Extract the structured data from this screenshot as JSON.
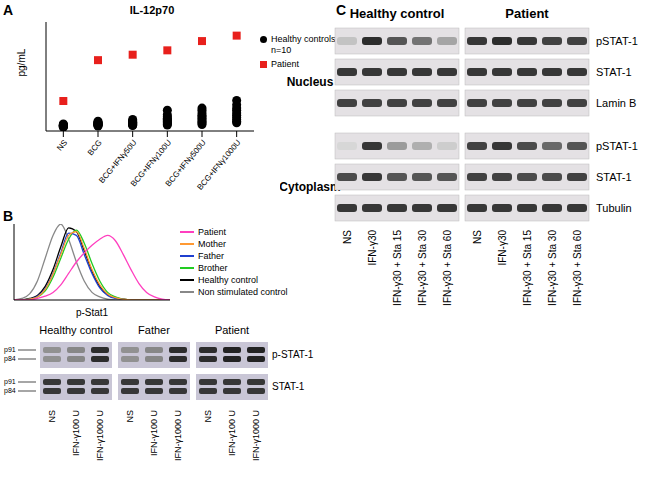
{
  "panel_labels": [
    "A",
    "B",
    "C"
  ],
  "chart_data": [
    {
      "type": "scatter",
      "title": "IL-12p70",
      "ylabel": "pg/mL",
      "categories": [
        "NS",
        "BCG",
        "BCG+IFNγ50U",
        "BCG+IFNγ100U",
        "BCG+IFNγ500U",
        "BCG+IFNγ1000U"
      ],
      "ylim": [
        0,
        2000
      ],
      "tick_labels": "x",
      "legend": "right",
      "series": [
        {
          "name": "Healthy controls n=10",
          "color": "#000000",
          "marker": "circle",
          "values": [
            [
              70,
              80,
              85,
              90,
              95,
              100,
              105,
              110,
              115,
              130
            ],
            [
              90,
              100,
              110,
              120,
              125,
              130,
              140,
              150,
              160,
              180
            ],
            [
              100,
              110,
              120,
              130,
              140,
              150,
              160,
              170,
              190,
              210
            ],
            [
              110,
              130,
              150,
              170,
              190,
              210,
              230,
              260,
              300,
              380
            ],
            [
              120,
              150,
              170,
              200,
              230,
              260,
              290,
              330,
              380,
              420
            ],
            [
              150,
              180,
              210,
              250,
              290,
              330,
              380,
              420,
              480,
              560
            ]
          ]
        },
        {
          "name": "Patient",
          "color": "#e8201c",
          "marker": "square",
          "values": [
            550,
            1300,
            1400,
            1480,
            1650,
            1750
          ]
        }
      ]
    },
    {
      "type": "line",
      "xlabel": "p-Stat1",
      "x": [
        0,
        5,
        10,
        15,
        20,
        25,
        30,
        35,
        40,
        45,
        50,
        55,
        60,
        65,
        70,
        75,
        80,
        85,
        90,
        95,
        100
      ],
      "xlim": [
        0,
        100
      ],
      "ylim": [
        0,
        100
      ],
      "tick_labels": false,
      "legend": "right",
      "series": [
        {
          "name": "Patient",
          "color": "#ff3fbf",
          "values": [
            0,
            0,
            0,
            2,
            5,
            10,
            20,
            35,
            50,
            62,
            72,
            80,
            85,
            78,
            60,
            40,
            22,
            10,
            4,
            1,
            0
          ]
        },
        {
          "name": "Mother",
          "color": "#ff9933",
          "values": [
            0,
            0,
            1,
            4,
            14,
            34,
            60,
            85,
            90,
            68,
            40,
            20,
            8,
            3,
            1,
            0,
            0,
            0,
            0,
            0,
            0
          ]
        },
        {
          "name": "Father",
          "color": "#1f3fcf",
          "values": [
            0,
            0,
            1,
            5,
            15,
            35,
            62,
            88,
            85,
            60,
            35,
            16,
            6,
            2,
            1,
            0,
            0,
            0,
            0,
            0,
            0
          ]
        },
        {
          "name": "Brother",
          "color": "#22cc22",
          "values": [
            0,
            0,
            1,
            4,
            12,
            30,
            55,
            80,
            92,
            75,
            48,
            25,
            10,
            4,
            1,
            0,
            0,
            0,
            0,
            0,
            0
          ]
        },
        {
          "name": "Healthy control",
          "color": "#000000",
          "values": [
            0,
            0,
            2,
            6,
            18,
            40,
            70,
            95,
            90,
            65,
            38,
            18,
            7,
            3,
            1,
            0,
            0,
            0,
            0,
            0,
            0
          ]
        },
        {
          "name": "Non stimulated control",
          "color": "#888888",
          "values": [
            0,
            2,
            8,
            25,
            55,
            85,
            100,
            80,
            50,
            25,
            10,
            4,
            1,
            0,
            0,
            0,
            0,
            0,
            0,
            0,
            0
          ]
        }
      ]
    }
  ],
  "blots": [
    {
      "groups": [
        {
          "name": "Healthy control",
          "lanes": [
            "NS",
            "IFN-γ100 U",
            "IFN-γ1000 U"
          ]
        },
        {
          "name": "Father",
          "lanes": [
            "NS",
            "IFN-γ100 U",
            "IFN-γ1000 U"
          ]
        },
        {
          "name": "Patient",
          "lanes": [
            "NS",
            "IFN-γ100 U",
            "IFN-γ1000 U"
          ]
        }
      ],
      "rows": [
        {
          "name": "p-STAT-1",
          "bands": [
            "p91",
            "p84"
          ],
          "intensity": [
            0.4,
            0.45,
            0.9,
            0.4,
            0.45,
            0.9,
            0.9,
            0.95,
            0.95
          ]
        },
        {
          "name": "STAT-1",
          "bands": [
            "p91",
            "p84"
          ],
          "intensity": [
            0.85,
            0.85,
            0.85,
            0.85,
            0.85,
            0.85,
            0.85,
            0.85,
            0.85
          ]
        }
      ]
    },
    {
      "groups": [
        {
          "name": "Healthy control",
          "lanes": [
            "NS",
            "IFN-γ30",
            "IFN-γ30 + Sta 15",
            "IFN-γ30 + Sta 30",
            "IFN-γ30 + Sta 60"
          ]
        },
        {
          "name": "Patient",
          "lanes": [
            "NS",
            "IFN-γ30",
            "IFN-γ30 + Sta 15",
            "IFN-γ30 + Sta 30",
            "IFN-γ30 + Sta 60"
          ]
        }
      ],
      "sections": [
        {
          "name": "Nucleus",
          "rows": [
            {
              "name": "pSTAT-1",
              "intensity": [
                0.15,
                0.9,
                0.7,
                0.55,
                0.3,
                0.85,
                0.9,
                0.85,
                0.8,
                0.8
              ]
            },
            {
              "name": "STAT-1",
              "intensity": [
                0.85,
                0.85,
                0.85,
                0.85,
                0.85,
                0.85,
                0.85,
                0.85,
                0.85,
                0.85
              ]
            },
            {
              "name": "Lamin B",
              "intensity": [
                0.8,
                0.8,
                0.8,
                0.8,
                0.8,
                0.8,
                0.8,
                0.8,
                0.8,
                0.8
              ]
            }
          ]
        },
        {
          "name": "Cytoplasm",
          "rows": [
            {
              "name": "pSTAT-1",
              "intensity": [
                0.05,
                0.85,
                0.35,
                0.25,
                0.1,
                0.8,
                0.85,
                0.75,
                0.6,
                0.7
              ]
            },
            {
              "name": "STAT-1",
              "intensity": [
                0.75,
                0.85,
                0.7,
                0.7,
                0.7,
                0.8,
                0.8,
                0.75,
                0.75,
                0.8
              ]
            },
            {
              "name": "Tubulin",
              "intensity": [
                0.85,
                0.85,
                0.85,
                0.85,
                0.85,
                0.85,
                0.85,
                0.85,
                0.85,
                0.85
              ]
            }
          ]
        }
      ]
    }
  ]
}
